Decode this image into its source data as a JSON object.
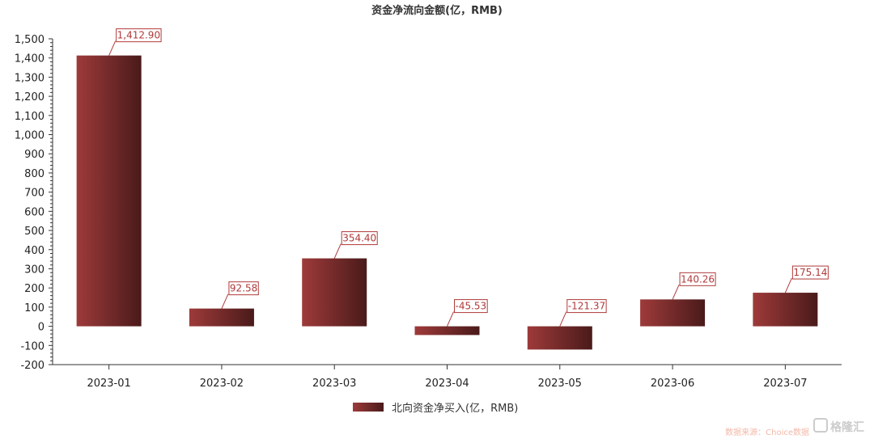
{
  "chart_data": {
    "type": "bar",
    "title": "资金净流向金额(亿，RMB)",
    "categories": [
      "2023-01",
      "2023-02",
      "2023-03",
      "2023-04",
      "2023-05",
      "2023-06",
      "2023-07"
    ],
    "series": [
      {
        "name": "北向资金净买入(亿，RMB)",
        "values": [
          1412.9,
          92.58,
          354.4,
          -45.53,
          -121.37,
          140.26,
          175.14
        ],
        "labels": [
          "1,412.90",
          "92.58",
          "354.40",
          "-45.53",
          "-121.37",
          "140.26",
          "175.14"
        ]
      }
    ],
    "xlabel": "",
    "ylabel": "",
    "ylim": [
      -200,
      1500
    ],
    "yticks": [
      -200,
      -100,
      0,
      100,
      200,
      300,
      400,
      500,
      600,
      700,
      800,
      900,
      1000,
      1100,
      1200,
      1300,
      1400,
      1500
    ],
    "ytick_labels": [
      "-200",
      "-100",
      "0",
      "100",
      "200",
      "300",
      "400",
      "500",
      "600",
      "700",
      "800",
      "900",
      "1,000",
      "1,100",
      "1,200",
      "1,300",
      "1,400",
      "1,500"
    ],
    "grid": false,
    "legend_position": "bottom-center",
    "colors": {
      "bar_light": "#9e3a3a",
      "bar_dark": "#4a1a1a",
      "label_border": "#b03a3a",
      "axis": "#333333"
    }
  },
  "footer": {
    "source_text": "数据来源：Choice数据",
    "logo_text": "格隆汇"
  }
}
